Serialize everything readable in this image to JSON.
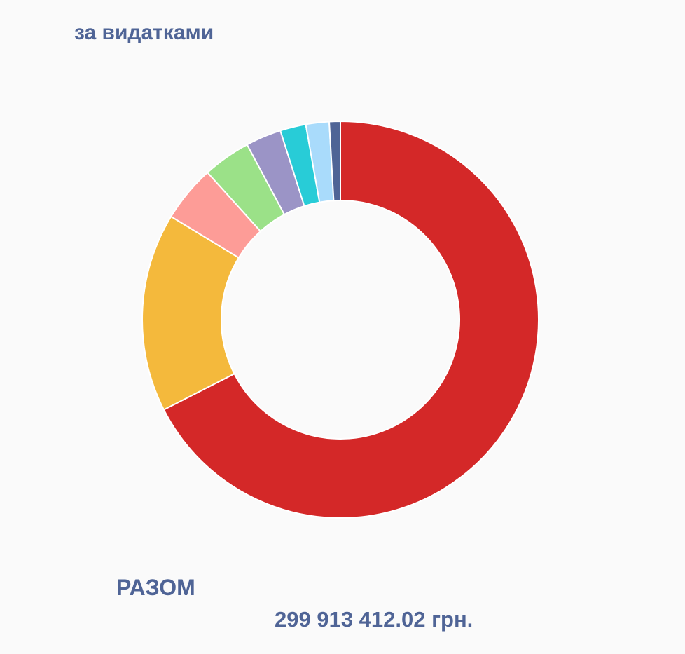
{
  "chart_data": {
    "type": "pie",
    "donut": true,
    "title": "за видатками",
    "values": [
      67.5,
      16.2,
      4.6,
      3.9,
      2.9,
      2.1,
      1.9,
      0.9
    ],
    "unit": "percent (estimated)",
    "colors": [
      "#d42828",
      "#f4b93c",
      "#fd9c97",
      "#9be188",
      "#9b94c6",
      "#28ccd7",
      "#a9dbfb",
      "#4f6496"
    ],
    "start": "top",
    "direction": "clockwise",
    "legend": "none"
  },
  "total": {
    "label": "РАЗОМ",
    "value": "299 913 412.02 грн."
  }
}
